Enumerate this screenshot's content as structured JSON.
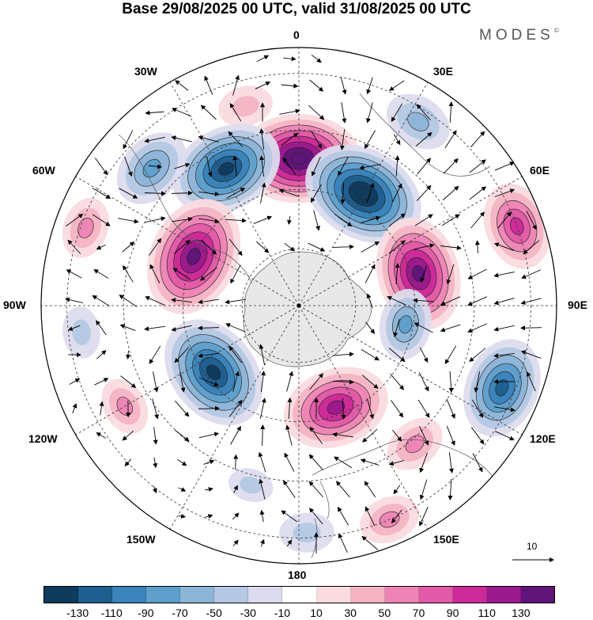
{
  "title": "Base 29/08/2025 00 UTC, valid 31/08/2025 00 UTC",
  "brand": {
    "text": "MODES",
    "mark": "©"
  },
  "longitude_labels": {
    "lon_0": "0",
    "lon_30e": "30E",
    "lon_60e": "60E",
    "lon_90e": "90E",
    "lon_120e": "120E",
    "lon_150e": "150E",
    "lon_180": "180",
    "lon_150w": "150W",
    "lon_120w": "120W",
    "lon_90w": "90W",
    "lon_60w": "60W",
    "lon_30w": "30W"
  },
  "vector_scale": {
    "label": "10",
    "icon": "arrow-right-icon"
  },
  "colorbar": {
    "colors": [
      "#0f3b5c",
      "#1e5f8f",
      "#3a83bb",
      "#5e9fcc",
      "#8db5d8",
      "#b4c8e3",
      "#dcdcee",
      "#ffffff",
      "#fadbdf",
      "#f4b4c4",
      "#ee84b6",
      "#e25aa8",
      "#cc2a98",
      "#9b1a8e",
      "#5e1478"
    ],
    "labels": [
      "-130",
      "-110",
      "-90",
      "-70",
      "-50",
      "-30",
      "-10",
      "10",
      "30",
      "50",
      "70",
      "90",
      "110",
      "130"
    ]
  },
  "map_data": {
    "projection": "south-polar-stereographic",
    "field": "geopotential height anomaly with wind vectors",
    "anomalies": [
      {
        "lon": 0,
        "colat": 0.57,
        "value": 135
      },
      {
        "lon": -15,
        "colat": 0.8,
        "value": 30
      },
      {
        "lon": -28,
        "colat": 0.6,
        "value": -120
      },
      {
        "lon": -47,
        "colat": 0.78,
        "value": -70
      },
      {
        "lon": -65,
        "colat": 0.45,
        "value": 130
      },
      {
        "lon": -70,
        "colat": 0.88,
        "value": 40
      },
      {
        "lon": 30,
        "colat": 0.5,
        "value": -135
      },
      {
        "lon": 33,
        "colat": 0.85,
        "value": -50
      },
      {
        "lon": 75,
        "colat": 0.48,
        "value": 120
      },
      {
        "lon": 70,
        "colat": 0.9,
        "value": 80
      },
      {
        "lon": 100,
        "colat": 0.42,
        "value": -55
      },
      {
        "lon": 112,
        "colat": 0.85,
        "value": -100
      },
      {
        "lon": 140,
        "colat": 0.7,
        "value": 40
      },
      {
        "lon": 157,
        "colat": 0.9,
        "value": 40
      },
      {
        "lon": 160,
        "colat": 0.42,
        "value": 110
      },
      {
        "lon": -128,
        "colat": 0.42,
        "value": -125
      },
      {
        "lon": -120,
        "colat": 0.78,
        "value": 35
      },
      {
        "lon": -97,
        "colat": 0.85,
        "value": -25
      },
      {
        "lon": 178,
        "colat": 0.88,
        "value": -30
      },
      {
        "lon": -165,
        "colat": 0.72,
        "value": -15
      }
    ]
  }
}
